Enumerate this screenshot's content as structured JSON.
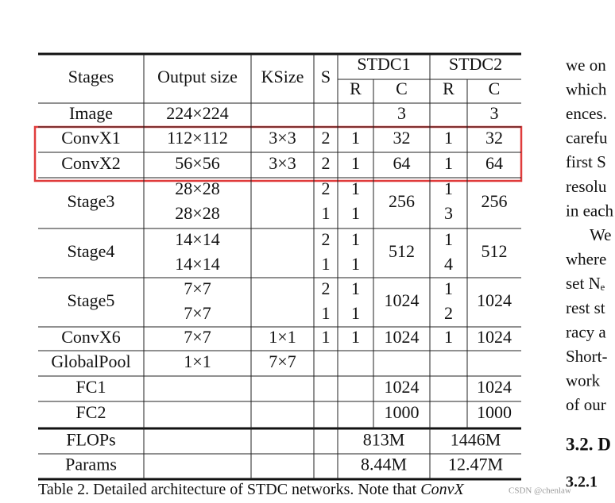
{
  "table": {
    "header_top": [
      "Stages",
      "Output size",
      "KSize",
      "S",
      "STDC1",
      "STDC2"
    ],
    "header_sub": [
      "R",
      "C",
      "R",
      "C"
    ],
    "rows": [
      [
        "Image",
        "224×224",
        null,
        null,
        null,
        "3",
        null,
        "3"
      ],
      [
        "ConvX1",
        "112×112",
        "3×3",
        "2",
        "1",
        "32",
        "1",
        "32"
      ],
      [
        "ConvX2",
        "56×56",
        "3×3",
        "2",
        "1",
        "64",
        "1",
        "64"
      ],
      [
        "Stage3",
        [
          "28×28",
          "28×28"
        ],
        null,
        [
          "2",
          "1"
        ],
        [
          "1",
          "1"
        ],
        "256",
        [
          "1",
          "3"
        ],
        "256"
      ],
      [
        "Stage4",
        [
          "14×14",
          "14×14"
        ],
        null,
        [
          "2",
          "1"
        ],
        [
          "1",
          "1"
        ],
        "512",
        [
          "1",
          "4"
        ],
        "512"
      ],
      [
        "Stage5",
        [
          "7×7",
          "7×7"
        ],
        null,
        [
          "2",
          "1"
        ],
        [
          "1",
          "1"
        ],
        "1024",
        [
          "1",
          "2"
        ],
        "1024"
      ],
      [
        "ConvX6",
        "7×7",
        "1×1",
        "1",
        "1",
        "1024",
        "1",
        "1024"
      ],
      [
        "GlobalPool",
        "1×1",
        "7×7",
        null,
        null,
        null,
        null,
        null
      ],
      [
        "FC1",
        null,
        null,
        null,
        null,
        "1024",
        null,
        "1024"
      ],
      [
        "FC2",
        null,
        null,
        null,
        null,
        "1000",
        null,
        "1000"
      ]
    ],
    "summary": [
      [
        "FLOPs",
        "813M",
        "1446M"
      ],
      [
        "Params",
        "8.44M",
        "12.47M"
      ]
    ]
  },
  "caption": {
    "text": "Table 2. Detailed architecture of STDC networks.  Note that ",
    "emphasis": "ConvX"
  },
  "side_text": [
    "we on",
    "which",
    "ences.",
    "carefu",
    "first S",
    "resolu",
    "in each",
    "We",
    "where",
    "set Nₑ",
    "rest st",
    "racy a",
    "Short-",
    "work",
    "of our"
  ],
  "section_heading": "3.2. D",
  "subsection_heading": "3.2.1",
  "watermark": "CSDN @chenlaw"
}
